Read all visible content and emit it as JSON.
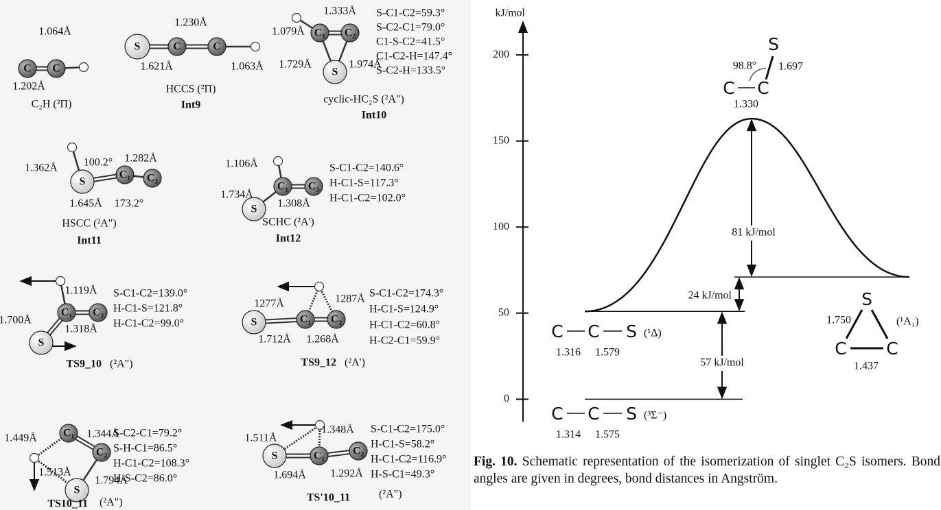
{
  "molecules": [
    {
      "atoms": [
        "C",
        "C"
      ],
      "labels": [
        "1.064Å",
        "1.202Å"
      ],
      "parameters": [],
      "name": "C₂H (²Π)"
    },
    {
      "atoms": [
        "S",
        "C",
        "C"
      ],
      "labels": [
        "1.230Å",
        "1.621Å",
        "1.063Å"
      ],
      "parameters": [],
      "name": "HCCS (²Π)",
      "label": "Int9"
    },
    {
      "atoms": [
        "C₁",
        "C₂",
        "S"
      ],
      "labels": [
        "1.333Å",
        "1.079Å",
        "1.729Å",
        "1.974Å"
      ],
      "parameters": [
        "S-C1-C2=59.3°",
        "S-C2-C1=79.0°",
        "C1-S-C2=41.5°",
        "C1-C2-H=147.4°",
        "S-C2-H=133.5°"
      ],
      "name": "cyclic-HC₂S (²A\")",
      "label": "Int10"
    },
    {
      "atoms": [
        "S",
        "C₁",
        "C₂"
      ],
      "labels": [
        "1.362Å",
        "100.2°",
        "1.282Å",
        "1.645Å",
        "173.2°"
      ],
      "parameters": [],
      "name": "HSCC (²A\")",
      "label": "Int11"
    },
    {
      "atoms": [
        "C₁",
        "C₂",
        "S"
      ],
      "labels": [
        "1.106Å",
        "1.734Å",
        "1.308Å"
      ],
      "parameters": [
        "S-C1-C2=140.6°",
        "H-C1-S=117.3°",
        "H-C1-C2=102.0°"
      ],
      "name": "SCHC (²A')",
      "label": "Int12"
    },
    {
      "atoms": [
        "C₁",
        "C₂",
        "S"
      ],
      "labels": [
        "1.119Å",
        "1.700Å",
        "1.318Å"
      ],
      "parameters": [
        "S-C1-C2=139.0°",
        "H-C1-S=121.8°",
        "H-C1-C2=99.0°"
      ],
      "name": "(²A\")",
      "label": "TS9_10"
    },
    {
      "atoms": [
        "S",
        "C₁",
        "C₂"
      ],
      "labels": [
        "1277Å",
        "1287Å",
        "1.712Å",
        "1.268Å"
      ],
      "parameters": [
        "S-C1-C2=174.3°",
        "H-C1-S=124.9°",
        "H-C1-C2=60.8°",
        "H-C2-C1=59.9°"
      ],
      "name": "(²A')",
      "label": "TS9_12"
    },
    {
      "atoms": [
        "C₁",
        "C₂",
        "S"
      ],
      "labels": [
        "1.449Å",
        "1.344Å",
        "1.513Å",
        "1.794Å"
      ],
      "parameters": [
        "S-C2-C1=79.2°",
        "S-H-C1=86.5°",
        "H-C1-C2=108.3°",
        "H-S-C2=86.0°"
      ],
      "name": "(²A\")",
      "label": "TS10_11"
    },
    {
      "atoms": [
        "S",
        "C₁",
        "C₂"
      ],
      "labels": [
        "1.511Å",
        "1.348Å",
        "1.694Å",
        "1.292Å"
      ],
      "parameters": [
        "S-C1-C2=175.0°",
        "H-C1-S=58.2°",
        "H-C1-C2=116.9°",
        "H-S-C1=49.3°"
      ],
      "name": "(²A\")",
      "label": "TS'10_11"
    }
  ],
  "energy_diagram": {
    "y_unit": "kJ/mol",
    "ylim": [
      -13,
      216
    ],
    "yticks": [
      0,
      50,
      100,
      150,
      200
    ],
    "levels": [
      {
        "energy": 0,
        "atoms": [
          "C",
          "C",
          "S"
        ],
        "distances": [
          "1.314",
          "1.575"
        ],
        "state": "(³Σ⁻)"
      },
      {
        "energy": 51,
        "atoms": [
          "C",
          "C",
          "S"
        ],
        "distances": [
          "1.316",
          "1.579"
        ],
        "state": "(¹Δ)"
      },
      {
        "energy": 71,
        "atoms": [
          "S",
          "C",
          "C"
        ],
        "distances": [
          "1.750",
          "1.437"
        ],
        "state": "(¹A₁)"
      }
    ],
    "transition_state": {
      "energy": 163,
      "atoms": [
        "C",
        "C",
        "S"
      ],
      "angle": "98.8°",
      "distances": [
        "1.697",
        "1.330"
      ]
    },
    "barriers": [
      {
        "label": "57 kJ/mol"
      },
      {
        "label": "24 kJ/mol"
      },
      {
        "label": "81 kJ/mol"
      }
    ]
  },
  "caption": {
    "label": "Fig. 10.",
    "text": "Schematic representation of the isomerization of singlet C₂S isomers. Bond angles are given in degrees, bond distances in Angström."
  }
}
